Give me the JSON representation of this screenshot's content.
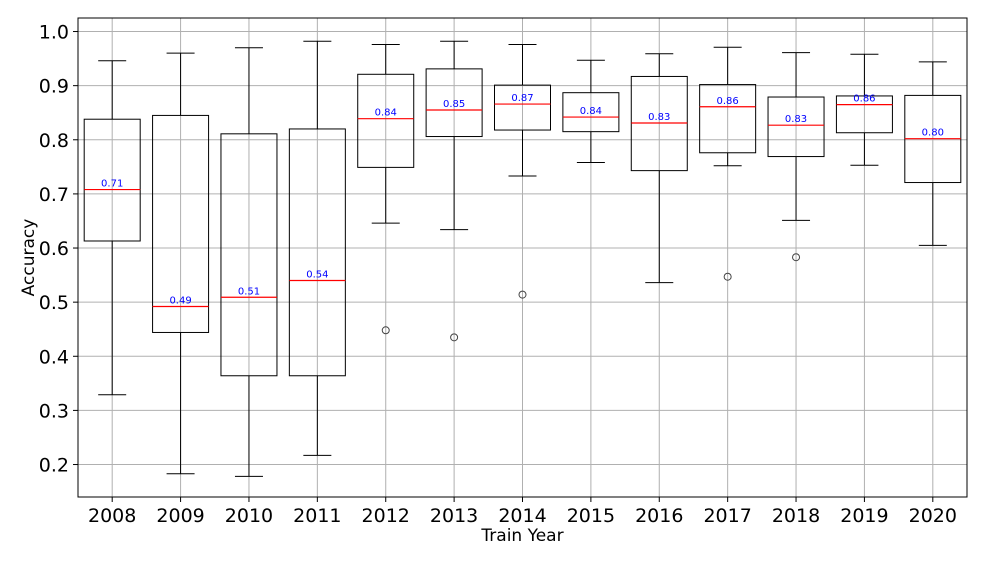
{
  "chart_data": {
    "type": "box",
    "xlabel": "Train Year",
    "ylabel": "Accuracy",
    "ylim": [
      0.14,
      1.025
    ],
    "yticks": [
      0.2,
      0.3,
      0.4,
      0.5,
      0.6,
      0.7,
      0.8,
      0.9,
      1.0
    ],
    "ytick_labels": [
      "0.2",
      "0.3",
      "0.4",
      "0.5",
      "0.6",
      "0.7",
      "0.8",
      "0.9",
      "1.0"
    ],
    "grid": true,
    "colors": {
      "box": "#000000",
      "median": "#ff0000",
      "median_label": "#0000ff",
      "grid": "#b0b0b0"
    },
    "categories": [
      "2008",
      "2009",
      "2010",
      "2011",
      "2012",
      "2013",
      "2014",
      "2015",
      "2016",
      "2017",
      "2018",
      "2019",
      "2020"
    ],
    "boxes": [
      {
        "label": "2008",
        "whisker_low": 0.329,
        "q1": 0.613,
        "median": 0.708,
        "q3": 0.838,
        "whisker_high": 0.946,
        "outliers": [],
        "median_label": "0.71"
      },
      {
        "label": "2009",
        "whisker_low": 0.183,
        "q1": 0.444,
        "median": 0.492,
        "q3": 0.845,
        "whisker_high": 0.96,
        "outliers": [],
        "median_label": "0.49"
      },
      {
        "label": "2010",
        "whisker_low": 0.178,
        "q1": 0.364,
        "median": 0.509,
        "q3": 0.811,
        "whisker_high": 0.97,
        "outliers": [],
        "median_label": "0.51"
      },
      {
        "label": "2011",
        "whisker_low": 0.217,
        "q1": 0.364,
        "median": 0.54,
        "q3": 0.82,
        "whisker_high": 0.982,
        "outliers": [],
        "median_label": "0.54"
      },
      {
        "label": "2012",
        "whisker_low": 0.646,
        "q1": 0.749,
        "median": 0.839,
        "q3": 0.921,
        "whisker_high": 0.976,
        "outliers": [
          0.448
        ],
        "median_label": "0.84"
      },
      {
        "label": "2013",
        "whisker_low": 0.634,
        "q1": 0.806,
        "median": 0.855,
        "q3": 0.931,
        "whisker_high": 0.982,
        "outliers": [
          0.435
        ],
        "median_label": "0.85"
      },
      {
        "label": "2014",
        "whisker_low": 0.733,
        "q1": 0.818,
        "median": 0.866,
        "q3": 0.901,
        "whisker_high": 0.976,
        "outliers": [
          0.514
        ],
        "median_label": "0.87"
      },
      {
        "label": "2015",
        "whisker_low": 0.758,
        "q1": 0.815,
        "median": 0.842,
        "q3": 0.887,
        "whisker_high": 0.947,
        "outliers": [],
        "median_label": "0.84"
      },
      {
        "label": "2016",
        "whisker_low": 0.536,
        "q1": 0.743,
        "median": 0.831,
        "q3": 0.917,
        "whisker_high": 0.959,
        "outliers": [],
        "median_label": "0.83"
      },
      {
        "label": "2017",
        "whisker_low": 0.752,
        "q1": 0.776,
        "median": 0.861,
        "q3": 0.902,
        "whisker_high": 0.971,
        "outliers": [
          0.547
        ],
        "median_label": "0.86"
      },
      {
        "label": "2018",
        "whisker_low": 0.651,
        "q1": 0.769,
        "median": 0.827,
        "q3": 0.879,
        "whisker_high": 0.961,
        "outliers": [
          0.583
        ],
        "median_label": "0.83"
      },
      {
        "label": "2019",
        "whisker_low": 0.753,
        "q1": 0.813,
        "median": 0.865,
        "q3": 0.881,
        "whisker_high": 0.958,
        "outliers": [],
        "median_label": "0.86"
      },
      {
        "label": "2020",
        "whisker_low": 0.605,
        "q1": 0.721,
        "median": 0.802,
        "q3": 0.882,
        "whisker_high": 0.944,
        "outliers": [],
        "median_label": "0.80"
      }
    ]
  }
}
